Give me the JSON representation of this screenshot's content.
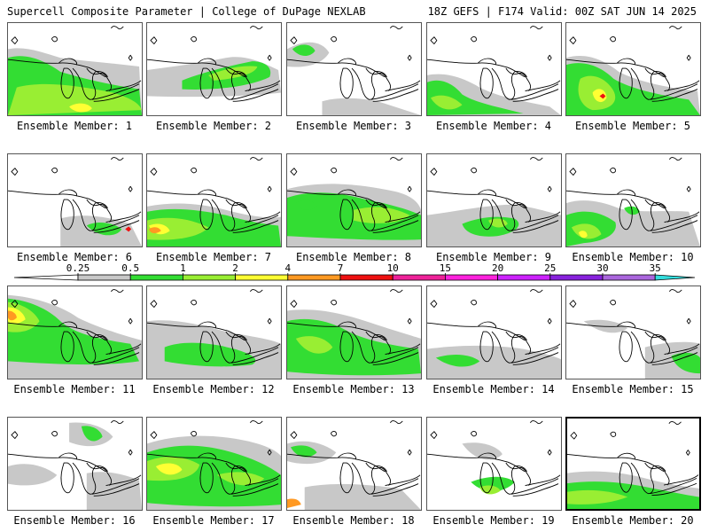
{
  "header": {
    "left_title": "Supercell Composite Parameter | College of DuPage NEXLAB",
    "right_title": "18Z GEFS | F174 Valid: 00Z SAT JUN 14 2025"
  },
  "member_prefix": "Ensemble Member: ",
  "members": [
    {
      "label": "Ensemble Member: 1"
    },
    {
      "label": "Ensemble Member: 2"
    },
    {
      "label": "Ensemble Member: 3"
    },
    {
      "label": "Ensemble Member: 4"
    },
    {
      "label": "Ensemble Member: 5"
    },
    {
      "label": "Ensemble Member: 6"
    },
    {
      "label": "Ensemble Member: 7"
    },
    {
      "label": "Ensemble Member: 8"
    },
    {
      "label": "Ensemble Member: 9"
    },
    {
      "label": "Ensemble Member: 10"
    },
    {
      "label": "Ensemble Member: 11"
    },
    {
      "label": "Ensemble Member: 12"
    },
    {
      "label": "Ensemble Member: 13"
    },
    {
      "label": "Ensemble Member: 14"
    },
    {
      "label": "Ensemble Member: 15"
    },
    {
      "label": "Ensemble Member: 16"
    },
    {
      "label": "Ensemble Member: 17"
    },
    {
      "label": "Ensemble Member: 18"
    },
    {
      "label": "Ensemble Member: 19"
    },
    {
      "label": "Ensemble Member: 20"
    }
  ],
  "selected_member": 20,
  "colorbar": {
    "ticks": [
      "0.25",
      "0.5",
      "1",
      "2",
      "4",
      "7",
      "10",
      "15",
      "20",
      "25",
      "30",
      "35"
    ],
    "colors": [
      "#ffffff",
      "#c8c8c8",
      "#33dd33",
      "#99ee33",
      "#ffff33",
      "#ff9922",
      "#ee1111",
      "#ee2299",
      "#ff22dd",
      "#cc22ff",
      "#8822dd",
      "#aa66dd",
      "#33dddd"
    ]
  },
  "colors": {
    "gray": "#c8c8c8",
    "green": "#33dd33",
    "lime": "#99ee33",
    "yellow": "#ffff33",
    "orange": "#ff9922",
    "red": "#ee1111"
  }
}
